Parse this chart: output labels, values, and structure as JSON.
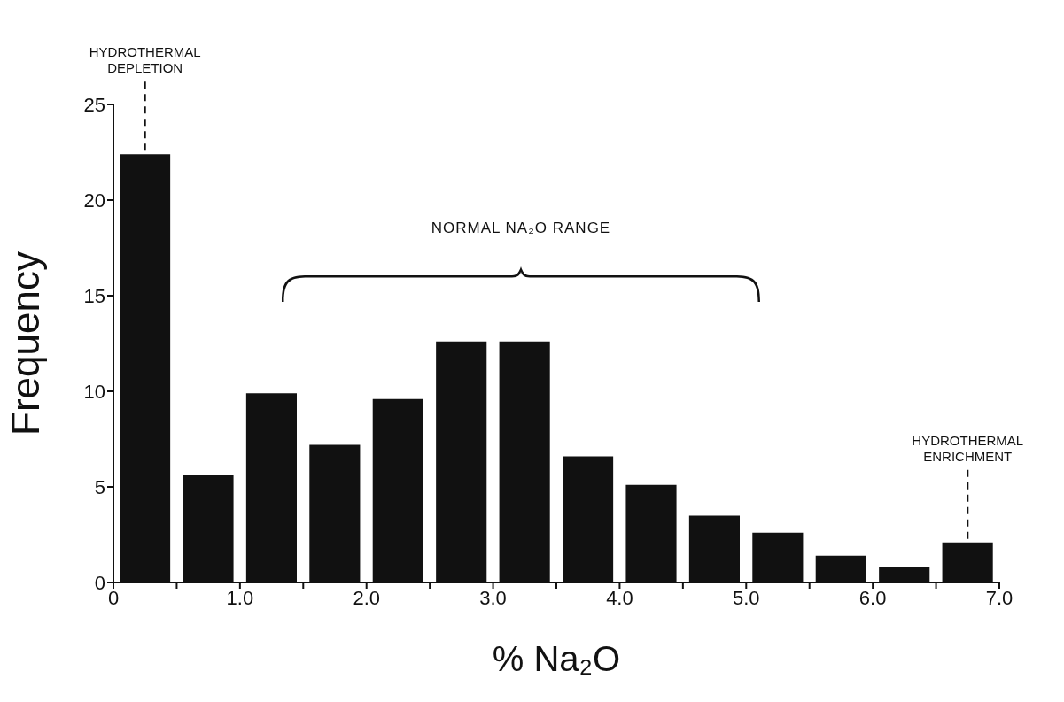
{
  "chart_data": {
    "type": "histogram",
    "xlabel": "% Na₂O",
    "ylabel": "Frequency",
    "bins": [
      0,
      0.5,
      1.0,
      1.5,
      2.0,
      2.5,
      3.0,
      3.5,
      4.0,
      4.5,
      5.0,
      5.5,
      6.0,
      6.5,
      7.0
    ],
    "values": [
      22.4,
      5.6,
      9.9,
      7.2,
      9.6,
      12.6,
      12.6,
      6.6,
      5.1,
      3.5,
      2.6,
      1.4,
      0.8,
      2.1
    ],
    "color": "#111111",
    "xlim": [
      0,
      7
    ],
    "xticks": [
      {
        "value": 0,
        "label": "0"
      },
      {
        "value": 0.5,
        "label": null
      },
      {
        "value": 1,
        "label": "1.0"
      },
      {
        "value": 1.5,
        "label": null
      },
      {
        "value": 2,
        "label": "2.0"
      },
      {
        "value": 2.5,
        "label": null
      },
      {
        "value": 3,
        "label": "3.0"
      },
      {
        "value": 3.5,
        "label": null
      },
      {
        "value": 4,
        "label": "4.0"
      },
      {
        "value": 4.5,
        "label": null
      },
      {
        "value": 5,
        "label": "5.0"
      },
      {
        "value": 5.5,
        "label": null
      },
      {
        "value": 6,
        "label": "6.0"
      },
      {
        "value": 6.5,
        "label": null
      },
      {
        "value": 7,
        "label": "7.0"
      }
    ],
    "ylim": [
      0,
      25
    ],
    "yticks": [
      0,
      5,
      10,
      15,
      20,
      25
    ],
    "grid": false,
    "legend": false,
    "annotations": [
      "NORMAL NA₂O RANGE",
      {
        "text": "HYDROTHERMAL DEPLETION",
        "x": 0.25,
        "y": 22.4
      },
      {
        "text": "HYDROTHERMAL ENRICHMENT",
        "x": 6.75,
        "y": 2.1
      }
    ]
  }
}
